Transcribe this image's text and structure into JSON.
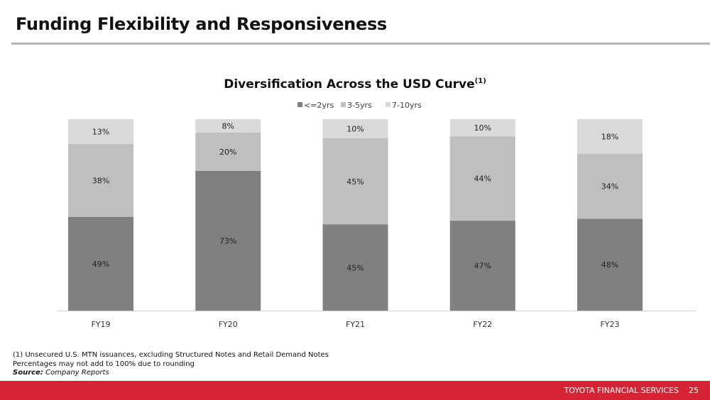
{
  "page": {
    "title": "Funding Flexibility and Responsiveness"
  },
  "chart_data": {
    "type": "bar",
    "stacked": true,
    "title": "Diversification Across the USD Curve",
    "title_superscript": "(1)",
    "categories": [
      "FY19",
      "FY20",
      "FY21",
      "FY22",
      "FY23"
    ],
    "series": [
      {
        "name": "<=2yrs",
        "values": [
          49,
          73,
          45,
          47,
          48
        ],
        "color": "#808080"
      },
      {
        "name": "3-5yrs",
        "values": [
          38,
          20,
          45,
          44,
          34
        ],
        "color": "#bfbfbf"
      },
      {
        "name": "7-10yrs",
        "values": [
          13,
          8,
          10,
          10,
          18
        ],
        "color": "#d9d9d9"
      }
    ],
    "value_format": "percent",
    "xlabel": "",
    "ylabel": "",
    "ylim": [
      0,
      100
    ],
    "grid": false,
    "y_axis_visible": false,
    "legend_position": "top-center",
    "data_labels": true
  },
  "footnotes": {
    "note_1": "(1)  Unsecured U.S. MTN issuances, excluding Structured Notes and Retail Demand Notes",
    "note_2": "Percentages may not add to 100% due to rounding",
    "source_label": "Source:",
    "source_value": "Company Reports"
  },
  "footer": {
    "brand": "TOYOTA FINANCIAL SERVICES",
    "page_number": "25"
  }
}
